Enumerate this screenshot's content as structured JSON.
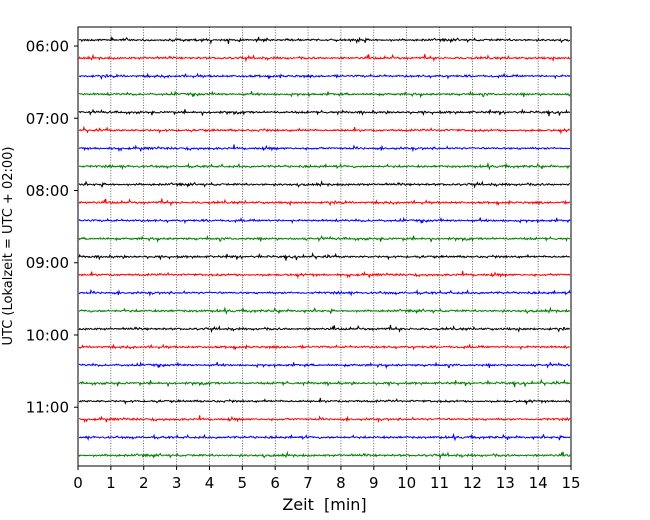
{
  "chart_data": {
    "type": "line",
    "title": "",
    "xlabel": "Zeit  [min]",
    "ylabel": "UTC (Lokalzeit = UTC + 02:00)",
    "xlim": [
      0,
      15
    ],
    "x_ticks": [
      "0",
      "1",
      "2",
      "3",
      "4",
      "5",
      "6",
      "7",
      "8",
      "9",
      "10",
      "11",
      "12",
      "13",
      "14",
      "15"
    ],
    "y_tick_labels": [
      "06:00",
      "07:00",
      "08:00",
      "09:00",
      "10:00",
      "11:00"
    ],
    "x_grid": true,
    "y_grid": false,
    "trace_minutes": 15,
    "trace_colors": [
      "#000000",
      "#ff0000",
      "#0000ff",
      "#008000"
    ],
    "traces": [
      {
        "start": "05:55"
      },
      {
        "start": "06:10"
      },
      {
        "start": "06:25"
      },
      {
        "start": "06:40"
      },
      {
        "start": "06:55"
      },
      {
        "start": "07:10"
      },
      {
        "start": "07:25"
      },
      {
        "start": "07:40"
      },
      {
        "start": "07:55"
      },
      {
        "start": "08:10"
      },
      {
        "start": "08:25"
      },
      {
        "start": "08:40"
      },
      {
        "start": "08:55"
      },
      {
        "start": "09:10"
      },
      {
        "start": "09:25"
      },
      {
        "start": "09:40"
      },
      {
        "start": "09:55"
      },
      {
        "start": "10:10"
      },
      {
        "start": "10:25"
      },
      {
        "start": "10:40"
      },
      {
        "start": "10:55"
      },
      {
        "start": "11:10"
      },
      {
        "start": "11:25"
      },
      {
        "start": "11:40"
      }
    ]
  }
}
